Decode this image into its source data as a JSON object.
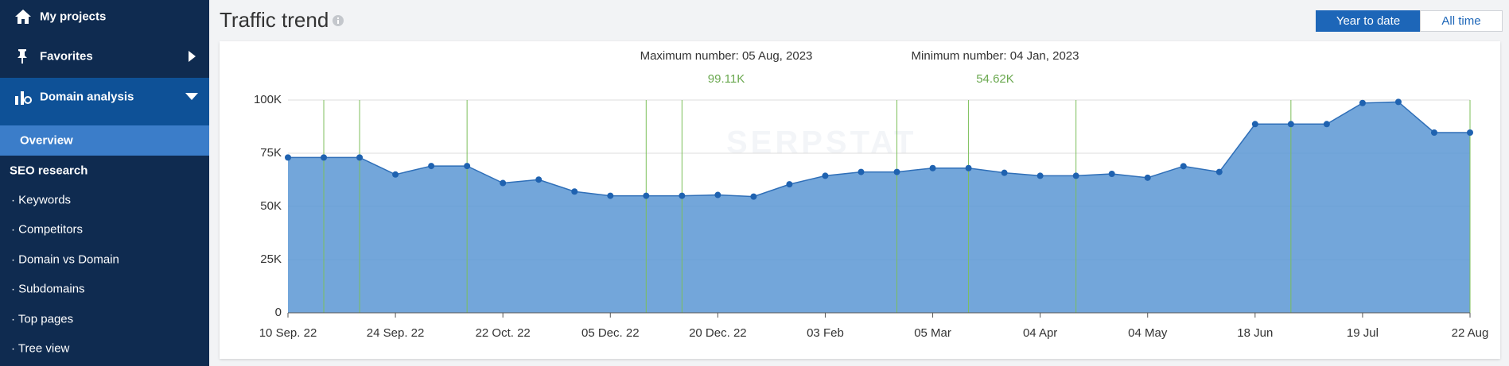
{
  "sidebar": {
    "items": [
      "My projects",
      "Favorites",
      "Domain analysis",
      "Overview",
      "SEO research",
      "Keywords",
      "Competitors",
      "Domain vs Domain",
      "Subdomains",
      "Top pages",
      "Tree view"
    ]
  },
  "header": {
    "title": "Traffic trend",
    "buttons": [
      "Year to date",
      "All time"
    ]
  },
  "chart_data": {
    "type": "area",
    "annotations": [
      "Maximum number: 05 Aug, 2023",
      "99.11K",
      "Minimum number: 04 Jan, 2023",
      "54.62K"
    ],
    "categories": [
      "10 Sep. 22",
      null,
      null,
      "24 Sep. 22",
      null,
      null,
      "22 Oct. 22",
      null,
      null,
      "05 Dec. 22",
      null,
      null,
      "20 Dec. 22",
      null,
      null,
      "03 Feb",
      null,
      null,
      "05 Mar",
      null,
      null,
      "04 Apr",
      null,
      null,
      "04 May",
      null,
      null,
      "18 Jun",
      null,
      null,
      "19 Jul",
      null,
      null,
      "22 Aug"
    ],
    "series": [
      {
        "name": "Traffic",
        "color": "#2f6fb8",
        "values": [
          73000,
          73000,
          73000,
          65000,
          69000,
          69000,
          61000,
          62600,
          57000,
          55000,
          55000,
          55000,
          55400,
          54620,
          60400,
          64400,
          66200,
          66200,
          68000,
          68000,
          65800,
          64400,
          64400,
          65300,
          63500,
          68900,
          66200,
          88700,
          88700,
          88700,
          98600,
          99110,
          84700,
          84700
        ]
      }
    ],
    "ylim": [
      0,
      100000
    ],
    "yticks": [
      0,
      {
        "value": 25000,
        "label": "25K"
      },
      {
        "value": 50000,
        "label": "50K"
      },
      {
        "value": 75000,
        "label": "75K"
      },
      {
        "value": 100000,
        "label": "100K"
      }
    ],
    "grid": true
  }
}
